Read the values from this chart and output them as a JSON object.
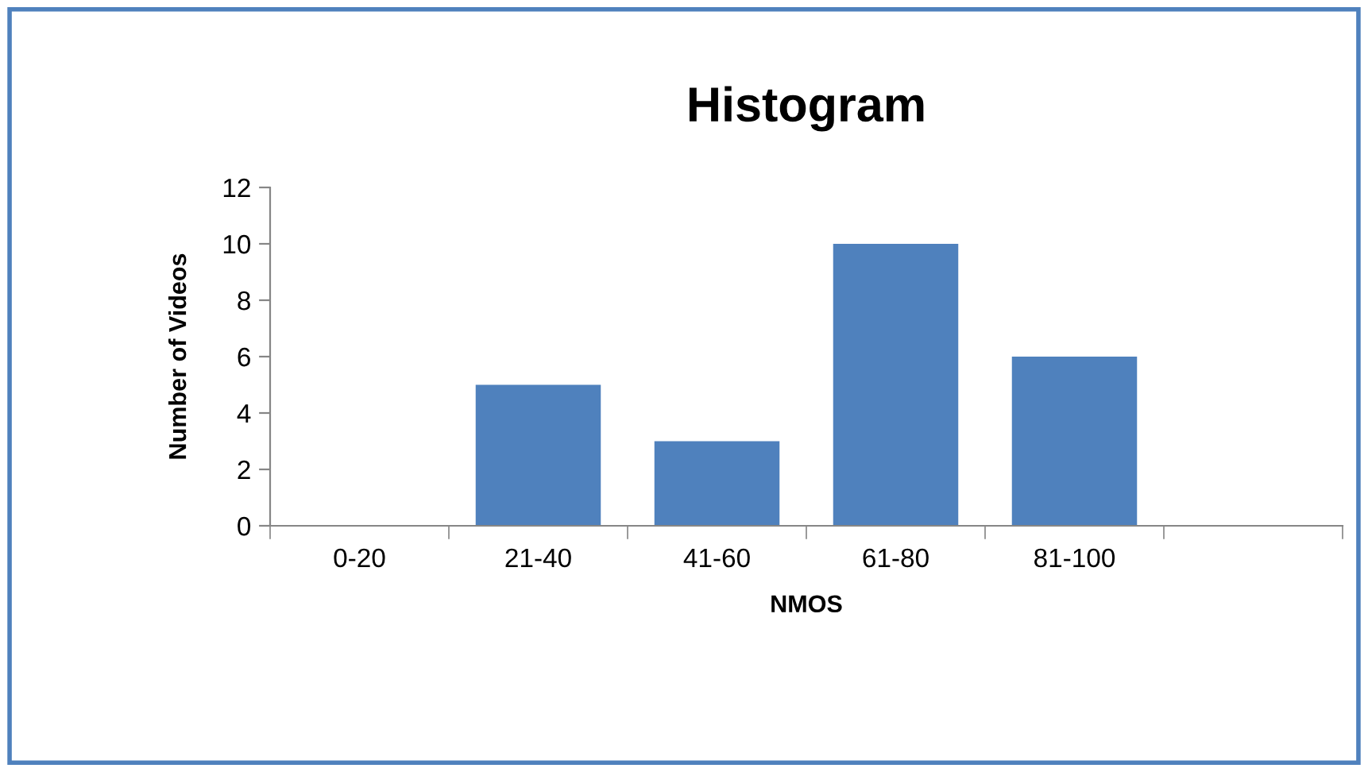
{
  "chart_data": {
    "type": "bar",
    "title": "Histogram",
    "xlabel": "NMOS",
    "ylabel": "Number of Videos",
    "categories": [
      "0-20",
      "21-40",
      "41-60",
      "61-80",
      "81-100",
      null
    ],
    "values": [
      0,
      5,
      3,
      10,
      6,
      null
    ],
    "color": "#4f81bd",
    "ylim": [
      0,
      12
    ],
    "yticks": [
      0,
      2,
      4,
      6,
      8,
      10,
      12
    ],
    "grid": false,
    "legend": false
  }
}
